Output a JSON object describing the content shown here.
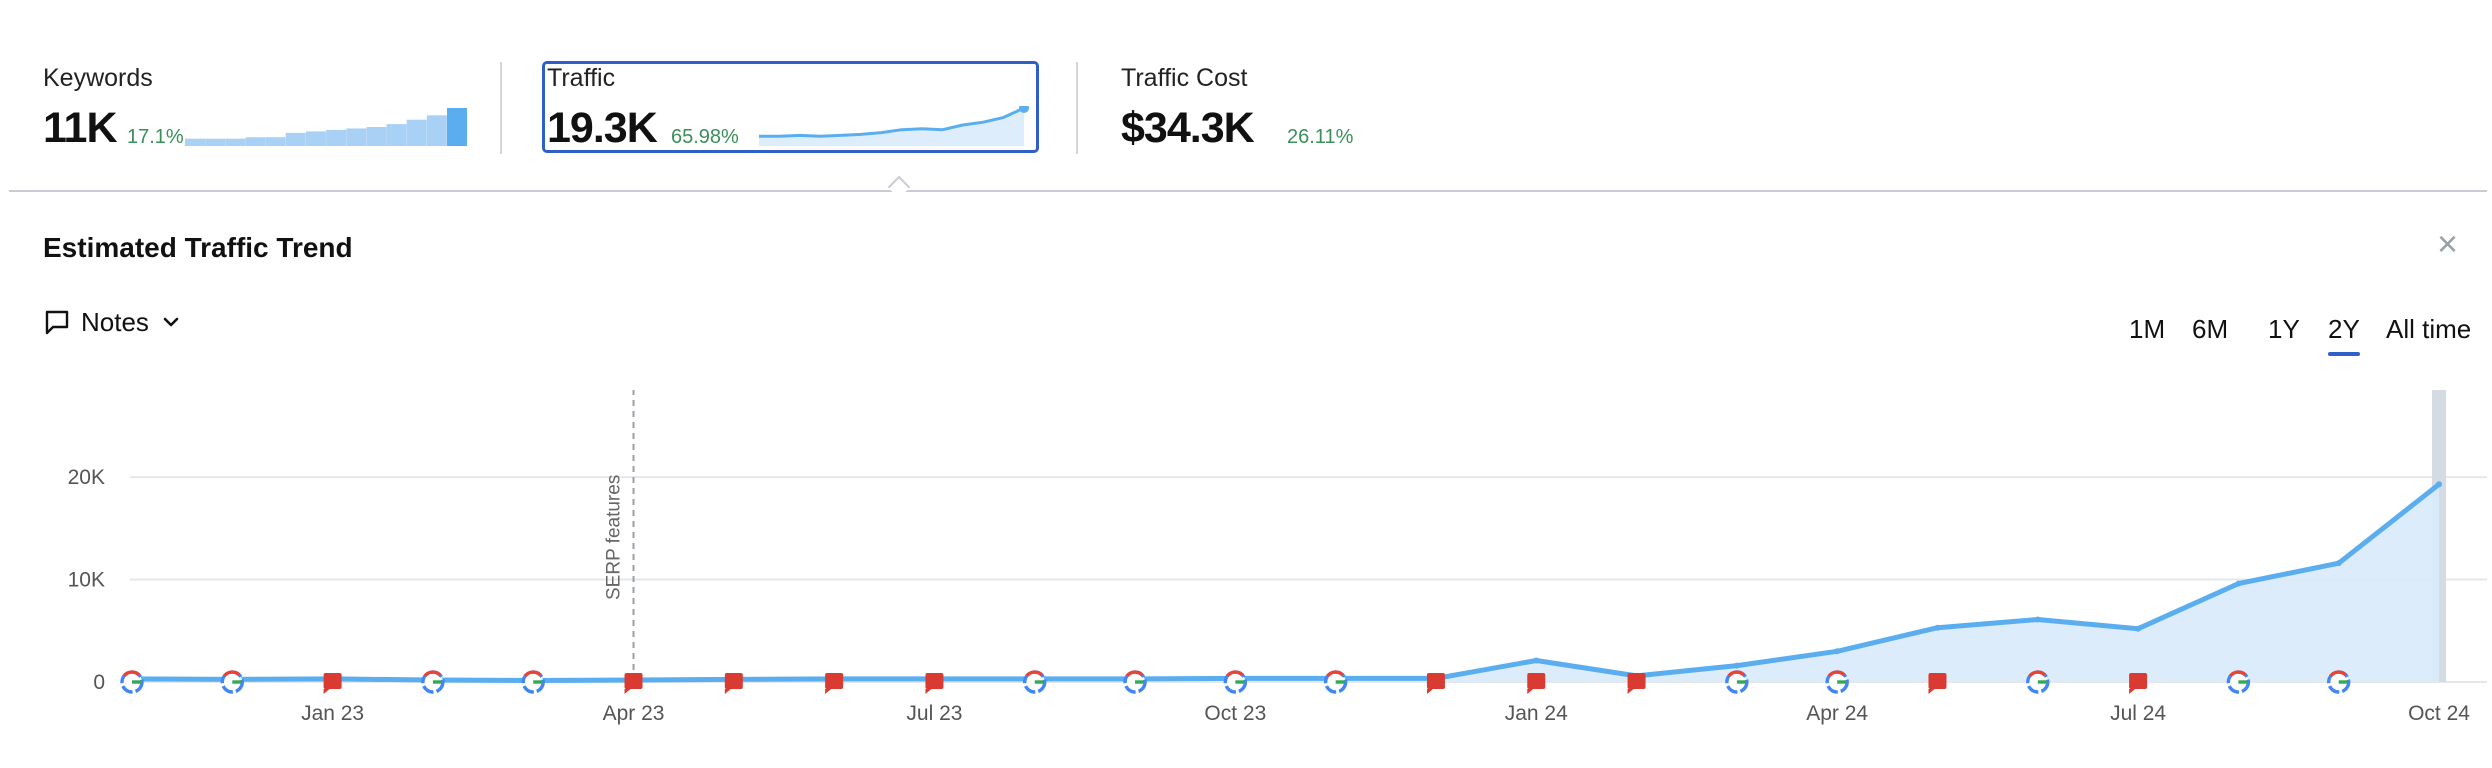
{
  "metrics": [
    {
      "label": "Keywords",
      "value": "11K",
      "change": "17.1%"
    },
    {
      "label": "Traffic",
      "value": "19.3K",
      "change": "65.98%"
    },
    {
      "label": "Traffic Cost",
      "value": "$34.3K",
      "change": "26.11%"
    }
  ],
  "section": {
    "title": "Estimated Traffic Trend",
    "close_icon": "×"
  },
  "notes": {
    "label": "Notes"
  },
  "ranges": [
    "1M",
    "6M",
    "1Y",
    "2Y",
    "All time"
  ],
  "active_range": "2Y",
  "colors": {
    "accent": "#2f5fc7",
    "line": "#5aaef0",
    "area": "#d8eafb",
    "positive": "#3a8f5b",
    "note_flag": "#d93a31"
  },
  "chart_data": {
    "type": "area",
    "x": [
      "Nov 22",
      "Dec 22",
      "Jan 23",
      "Feb 23",
      "Mar 23",
      "Apr 23",
      "May 23",
      "Jun 23",
      "Jul 23",
      "Aug 23",
      "Sep 23",
      "Oct 23",
      "Nov 23",
      "Dec 23",
      "Jan 24",
      "Feb 24",
      "Mar 24",
      "Apr 24",
      "May 24",
      "Jun 24",
      "Jul 24",
      "Aug 24",
      "Sep 24",
      "Oct 24"
    ],
    "y": [
      300,
      250,
      300,
      200,
      150,
      200,
      250,
      300,
      300,
      300,
      300,
      350,
      350,
      350,
      2100,
      600,
      1600,
      3000,
      5300,
      6100,
      5200,
      9600,
      11600,
      19300
    ],
    "x_tick_labels": [
      "Jan 23",
      "Apr 23",
      "Jul 23",
      "Oct 23",
      "Jan 24",
      "Apr 24",
      "Jul 24",
      "Oct 24"
    ],
    "y_tick_labels": [
      "0",
      "10K",
      "20K"
    ],
    "y_ticks": [
      0,
      10000,
      20000
    ],
    "ylim": [
      0,
      28500
    ],
    "annotation": {
      "x": "Apr 23",
      "label": "SERP features"
    },
    "markers": [
      "google",
      "google",
      "note",
      "google",
      "google",
      "note",
      "note",
      "note",
      "note",
      "google",
      "google",
      "google",
      "google",
      "note",
      "note",
      "note",
      "google",
      "google",
      "note",
      "google",
      "note",
      "google",
      "google"
    ]
  },
  "sparks": {
    "keywords": [
      0.5,
      0.5,
      0.5,
      0.6,
      0.6,
      0.9,
      1.0,
      1.1,
      1.2,
      1.3,
      1.5,
      1.8,
      2.1,
      2.6
    ],
    "traffic": [
      0.3,
      0.3,
      0.35,
      0.3,
      0.35,
      0.4,
      0.5,
      0.65,
      0.7,
      0.65,
      0.9,
      1.05,
      1.3,
      1.8
    ]
  }
}
